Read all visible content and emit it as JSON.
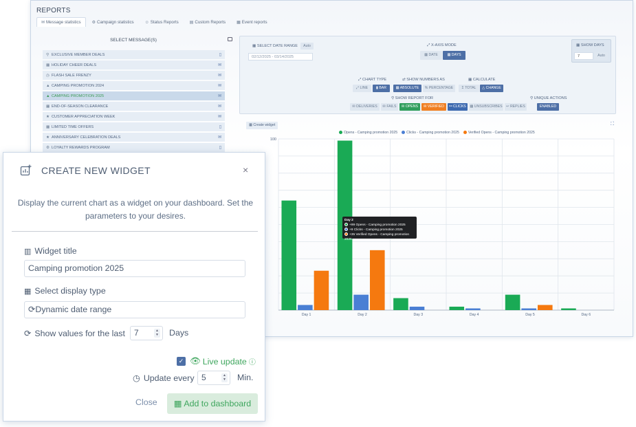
{
  "reports": {
    "title": "REPORTS",
    "tabs": [
      {
        "label": "Message statistics",
        "icon": "envelope-icon"
      },
      {
        "label": "Campaign statistics",
        "icon": "gear-icon"
      },
      {
        "label": "Status Reports",
        "icon": "user-icon"
      },
      {
        "label": "Custom Reports",
        "icon": "printer-icon"
      },
      {
        "label": "Event reports",
        "icon": "calendar-icon"
      }
    ]
  },
  "sidebar": {
    "heading": "SELECT MESSAGE(S)",
    "items": [
      {
        "label": "EXCLUSIVE MEMBER DEALS",
        "icon": "filter-icon",
        "type": "mobile"
      },
      {
        "label": "HOLIDAY CHEER DEALS",
        "icon": "calendar-icon",
        "type": "email"
      },
      {
        "label": "FLASH SALE FRENZY",
        "icon": "clock-icon",
        "type": "email"
      },
      {
        "label": "CAMPING PROMOTION 2024",
        "icon": "tent-icon",
        "type": "email"
      },
      {
        "label": "CAMPING PROMOTION 2025",
        "icon": "tent-icon",
        "type": "email",
        "selected": true
      },
      {
        "label": "END-OF-SEASON CLEARANCE",
        "icon": "calendar-icon",
        "type": "email"
      },
      {
        "label": "CUSTOMER APPRECIATION WEEK",
        "icon": "star-icon",
        "type": "email"
      },
      {
        "label": "LIMITED TIME OFFERS",
        "icon": "calendar-icon",
        "type": "mobile"
      },
      {
        "label": "ANNIVERSARY CELEBRATION DEALS",
        "icon": "star-icon",
        "type": "email"
      },
      {
        "label": "LOYALTY REWARDS PROGRAM",
        "icon": "gear-icon",
        "type": "mobile"
      }
    ]
  },
  "controls": {
    "date_range_label": "SELECT DATE RANGE",
    "auto_label": "Auto",
    "date_range_value": "02/12/2025 - 03/14/2025",
    "xaxis_label": "X-AXIS MODE",
    "xaxis_date": "DATE",
    "xaxis_days": "DAYS",
    "show_days_label": "SHOW DAYS",
    "show_days_value": "7",
    "show_days_auto": "Auto",
    "chart_type_label": "CHART TYPE",
    "chart_line": "LINE",
    "chart_bar": "BAR",
    "show_numbers_label": "SHOW NUMBERS AS",
    "num_absolute": "ABSOLUTE",
    "num_percentage": "PERCENTAGE",
    "calculate_label": "CALCULATE",
    "calc_total": "TOTAL",
    "calc_change": "CHANGE",
    "report_for_label": "SHOW REPORT FOR",
    "report_for": [
      "DELIVERIES",
      "FAILS",
      "OPENS",
      "VERIFIED",
      "CLICKS",
      "UNSUBSCRIBES",
      "REPLIES"
    ],
    "unique_label": "UNIQUE ACTIONS",
    "unique_value": "ENABLED"
  },
  "chart_toolbar": {
    "create_widget": "Create widget"
  },
  "chart_data": {
    "type": "bar",
    "categories": [
      "Day 1",
      "Day 2",
      "Day 3",
      "Day 4",
      "Day 5",
      "Day 6"
    ],
    "ylim": [
      0,
      100
    ],
    "ytick_labels": [
      "100"
    ],
    "grid": true,
    "legend": "top-center",
    "series": [
      {
        "name": "Opens - Camping promotion 2025",
        "color": "#1aaa55",
        "values": [
          64,
          99,
          7,
          2,
          9,
          1
        ]
      },
      {
        "name": "Clicks - Camping promotion 2025",
        "color": "#4a7fd4",
        "values": [
          3,
          9,
          2,
          1,
          1,
          0
        ]
      },
      {
        "name": "Verified Opens - Camping promotion 2025",
        "color": "#f5790f",
        "values": [
          23,
          35,
          0,
          0,
          3,
          0
        ]
      }
    ]
  },
  "tooltip": {
    "title": "Day 2",
    "lines": [
      "+99 Opens - Camping promotion 2025",
      "+9 Clicks - Camping promotion 2025",
      "+35 Verified Opens - Camping promotion 2025"
    ]
  },
  "modal": {
    "title": "CREATE NEW WIDGET",
    "close_symbol": "×",
    "description": "Display the current chart as a widget on your dashboard. Set the parameters to your desires.",
    "widget_title_label": "Widget title",
    "widget_title_value": "Camping promotion 2025",
    "display_type_label": "Select display type",
    "display_type_value": "Dynamic date range",
    "show_values_label": "Show values for the last",
    "show_values_value": "7",
    "show_values_unit": "Days",
    "live_update_label": "Live update",
    "live_update_checked": true,
    "update_every_label": "Update every",
    "update_every_value": "5",
    "update_every_unit": "Min.",
    "close_button": "Close",
    "add_button": "Add to dashboard"
  }
}
